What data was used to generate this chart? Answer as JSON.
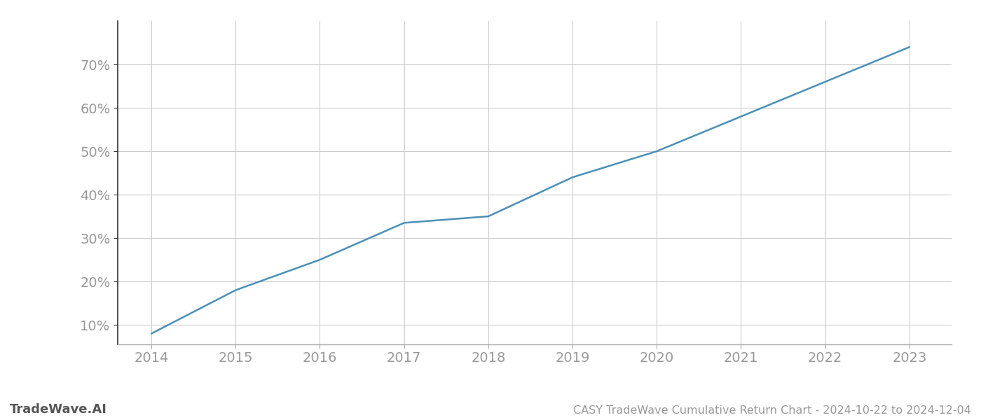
{
  "x_years": [
    2014,
    2015,
    2016,
    2017,
    2018,
    2019,
    2020,
    2021,
    2022,
    2023
  ],
  "y_values": [
    8.0,
    18.0,
    25.0,
    33.5,
    35.0,
    44.0,
    50.0,
    58.0,
    66.0,
    74.0
  ],
  "line_color": "#4a90b8",
  "line_width": 1.8,
  "background_color": "#ffffff",
  "grid_color": "#cccccc",
  "tick_label_color": "#999999",
  "title_text": "CASY TradeWave Cumulative Return Chart - 2024-10-22 to 2024-12-04",
  "watermark_text": "TradeWave.AI",
  "xlim": [
    2013.6,
    2023.5
  ],
  "ylim": [
    5.5,
    80
  ],
  "yticks": [
    10,
    20,
    30,
    40,
    50,
    60,
    70
  ],
  "xticks": [
    2014,
    2015,
    2016,
    2017,
    2018,
    2019,
    2020,
    2021,
    2022,
    2023
  ],
  "title_fontsize": 11.5,
  "watermark_fontsize": 13,
  "tick_fontsize": 14,
  "spine_color": "#aaaaaa",
  "left_spine_color": "#333333"
}
